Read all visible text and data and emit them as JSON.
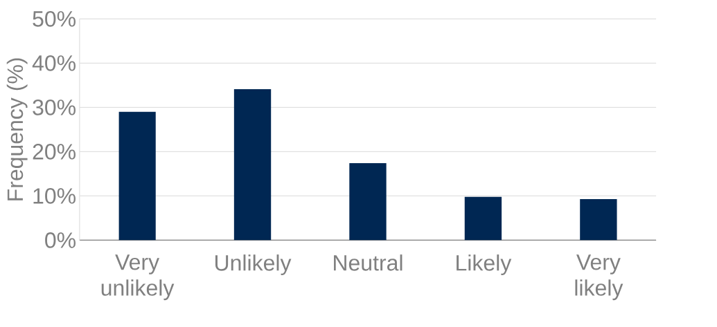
{
  "chart_data": {
    "type": "bar",
    "ylabel": "Frequency (%)",
    "categories": [
      "Very unlikely",
      "Unlikely",
      "Neutral",
      "Likely",
      "Very likely"
    ],
    "values": [
      29.0,
      34.1,
      17.4,
      9.8,
      9.3
    ],
    "color": "#002753",
    "ylim": [
      0,
      50
    ],
    "yticks": [
      {
        "value": 0,
        "label": "0%"
      },
      {
        "value": 10,
        "label": "10%"
      },
      {
        "value": 20,
        "label": "20%"
      },
      {
        "value": 30,
        "label": "30%"
      },
      {
        "value": 40,
        "label": "40%"
      },
      {
        "value": 50,
        "label": "50%"
      }
    ],
    "grid": "y"
  }
}
